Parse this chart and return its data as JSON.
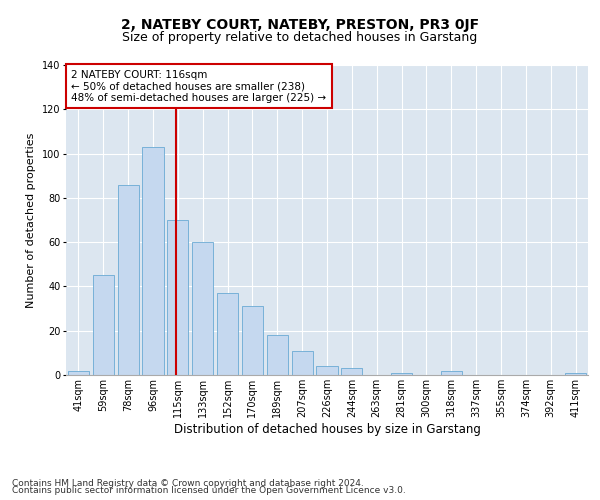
{
  "title_line1": "2, NATEBY COURT, NATEBY, PRESTON, PR3 0JF",
  "title_line2": "Size of property relative to detached houses in Garstang",
  "xlabel": "Distribution of detached houses by size in Garstang",
  "ylabel": "Number of detached properties",
  "categories": [
    "41sqm",
    "59sqm",
    "78sqm",
    "96sqm",
    "115sqm",
    "133sqm",
    "152sqm",
    "170sqm",
    "189sqm",
    "207sqm",
    "226sqm",
    "244sqm",
    "263sqm",
    "281sqm",
    "300sqm",
    "318sqm",
    "337sqm",
    "355sqm",
    "374sqm",
    "392sqm",
    "411sqm"
  ],
  "values": [
    2,
    45,
    86,
    103,
    70,
    60,
    37,
    31,
    18,
    11,
    4,
    3,
    0,
    1,
    0,
    2,
    0,
    0,
    0,
    0,
    1
  ],
  "bar_color": "#c5d8ef",
  "bar_edge_color": "#6aaad4",
  "vline_x": 4,
  "vline_color": "#cc0000",
  "annotation_text": "2 NATEBY COURT: 116sqm\n← 50% of detached houses are smaller (238)\n48% of semi-detached houses are larger (225) →",
  "annotation_box_color": "#ffffff",
  "annotation_box_edge_color": "#cc0000",
  "ylim": [
    0,
    140
  ],
  "yticks": [
    0,
    20,
    40,
    60,
    80,
    100,
    120,
    140
  ],
  "plot_bg_color": "#dce6f0",
  "footer_line1": "Contains HM Land Registry data © Crown copyright and database right 2024.",
  "footer_line2": "Contains public sector information licensed under the Open Government Licence v3.0.",
  "title_fontsize": 10,
  "subtitle_fontsize": 9,
  "xlabel_fontsize": 8.5,
  "ylabel_fontsize": 8,
  "tick_fontsize": 7,
  "annotation_fontsize": 7.5,
  "footer_fontsize": 6.5
}
